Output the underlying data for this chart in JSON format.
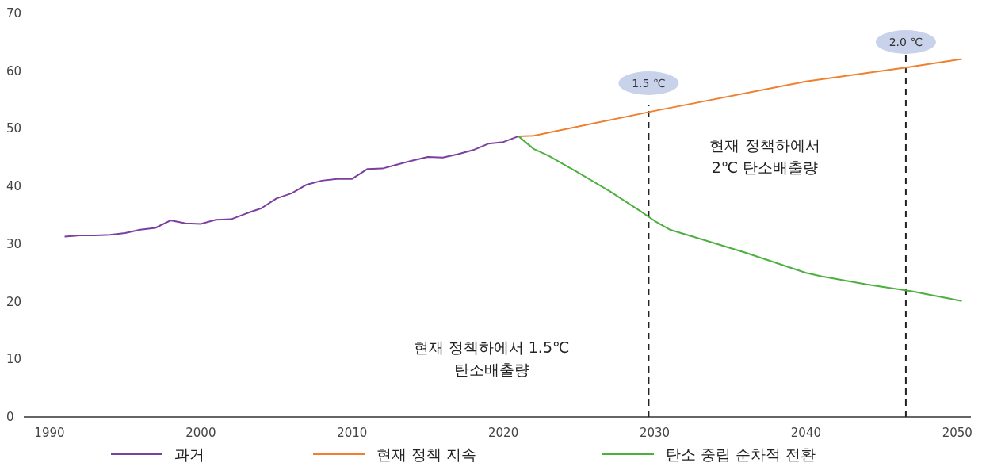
{
  "chart_data": {
    "type": "line",
    "xlim": [
      1988.3,
      2050.9
    ],
    "ylim": [
      0,
      70
    ],
    "xticks": [
      1990,
      2000,
      2010,
      2020,
      2030,
      2040,
      2050
    ],
    "yticks": [
      0,
      10,
      20,
      30,
      40,
      50,
      60,
      70
    ],
    "grid": false,
    "legend": "bottom",
    "marker": "none",
    "line_style": "solid",
    "series": [
      {
        "name": "과거",
        "color": "#7b3f9e",
        "x": [
          1991,
          1992,
          1993,
          1994,
          1995,
          1996,
          1997,
          1998,
          1999,
          2000,
          2001,
          2002,
          2003,
          2004,
          2005,
          2006,
          2007,
          2008,
          2009,
          2010,
          2011,
          2012,
          2013,
          2014,
          2015,
          2016,
          2017,
          2018,
          2019,
          2020,
          2021
        ],
        "values": [
          31.3,
          31.5,
          31.5,
          31.6,
          31.9,
          32.5,
          32.8,
          34.1,
          33.6,
          33.5,
          34.2,
          34.3,
          35.3,
          36.2,
          37.9,
          38.8,
          40.3,
          41.0,
          41.3,
          41.3,
          43.0,
          43.1,
          43.8,
          44.5,
          45.1,
          45.0,
          45.6,
          46.3,
          47.4,
          47.7,
          48.7
        ]
      },
      {
        "name": "현재 정책 지속",
        "color": "#f07f2e",
        "x": [
          2021,
          2022,
          2030,
          2040,
          2046.6,
          2050.3
        ],
        "values": [
          48.7,
          48.8,
          53.1,
          58.2,
          60.6,
          62.1
        ]
      },
      {
        "name": "탄소 중립 순차적 전환",
        "color": "#4caf3e",
        "x": [
          2021,
          2022,
          2023,
          2025,
          2027,
          2029,
          2030,
          2031,
          2033,
          2036,
          2040,
          2041,
          2044,
          2047,
          2050.3
        ],
        "values": [
          48.7,
          46.5,
          45.3,
          42.3,
          39.2,
          35.8,
          34.0,
          32.5,
          30.9,
          28.5,
          25.0,
          24.4,
          23.0,
          21.8,
          20.1
        ]
      }
    ],
    "ref_lines": [
      {
        "axis": "x",
        "value": 2029.6,
        "label": "1.5 ℃",
        "color": "#222222",
        "line_style": "dashed"
      },
      {
        "axis": "x",
        "value": 2046.6,
        "label": "2.0 ℃",
        "color": "#222222",
        "line_style": "dashed"
      }
    ],
    "annotations": [
      "현재 정책하에서\n2℃ 탄소배출량",
      "현재 정책하에서 1.5℃\n탄소배출량"
    ]
  }
}
